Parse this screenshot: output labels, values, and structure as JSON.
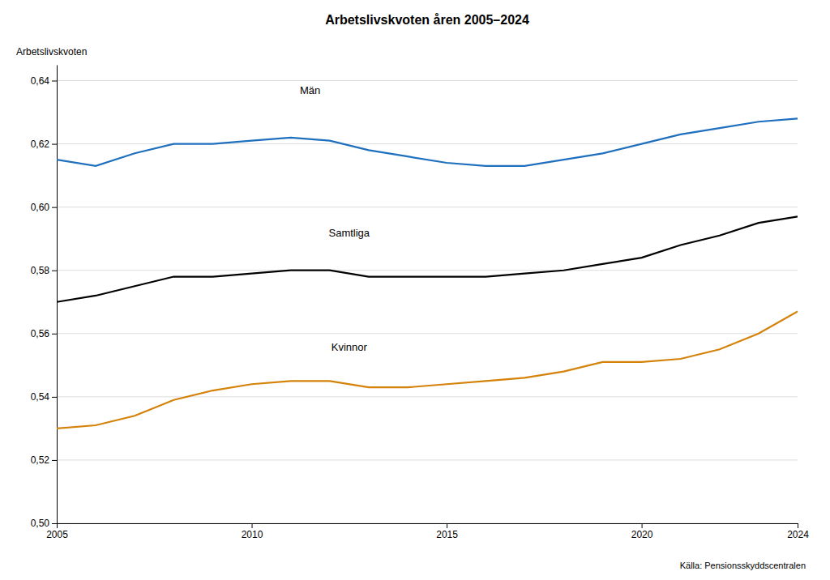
{
  "chart_data": {
    "type": "line",
    "title": "Arbetslivskvoten åren 2005–2024",
    "y_label": "Arbetslivskvoten",
    "source": "Källa: Pensionsskyddscentralen",
    "x": [
      2005,
      2006,
      2007,
      2008,
      2009,
      2010,
      2011,
      2012,
      2013,
      2014,
      2015,
      2016,
      2017,
      2018,
      2019,
      2020,
      2021,
      2022,
      2023,
      2024
    ],
    "series": [
      {
        "color": "#1F6FBF",
        "values": [
          0.615,
          0.613,
          0.617,
          0.62,
          0.62,
          0.621,
          0.622,
          0.621,
          0.618,
          0.616,
          0.614,
          0.613,
          0.613,
          0.615,
          0.617,
          0.62,
          0.623,
          0.625,
          0.627,
          0.628
        ]
      },
      {
        "color": "#000000",
        "values": [
          0.57,
          0.572,
          0.575,
          0.578,
          0.578,
          0.579,
          0.58,
          0.58,
          0.578,
          0.578,
          0.578,
          0.578,
          0.579,
          0.58,
          0.582,
          0.584,
          0.588,
          0.591,
          0.595,
          0.597
        ]
      },
      {
        "color": "#D4820A",
        "values": [
          0.53,
          0.531,
          0.534,
          0.539,
          0.542,
          0.544,
          0.545,
          0.545,
          0.543,
          0.543,
          0.544,
          0.545,
          0.546,
          0.548,
          0.551,
          0.551,
          0.552,
          0.555,
          0.56,
          0.567
        ]
      }
    ],
    "annotations": [
      {
        "text": "Män",
        "x": 2011.5,
        "y": 0.635
      },
      {
        "text": "Samtliga",
        "x": 2012.5,
        "y": 0.59
      },
      {
        "text": "Kvinnor",
        "x": 2012.5,
        "y": 0.554
      }
    ],
    "xlim": [
      2005,
      2024
    ],
    "xticks": [
      2005,
      2010,
      2015,
      2020,
      2024
    ],
    "ylim": [
      0.5,
      0.645
    ],
    "yticks": [
      {
        "value": 0.5,
        "label": "0,50"
      },
      {
        "value": 0.52,
        "label": "0,52"
      },
      {
        "value": 0.54,
        "label": "0,54"
      },
      {
        "value": 0.56,
        "label": "0,56"
      },
      {
        "value": 0.58,
        "label": "0,58"
      },
      {
        "value": 0.6,
        "label": "0,60"
      },
      {
        "value": 0.62,
        "label": "0,62"
      },
      {
        "value": 0.64,
        "label": "0,64"
      }
    ],
    "grid": true
  }
}
